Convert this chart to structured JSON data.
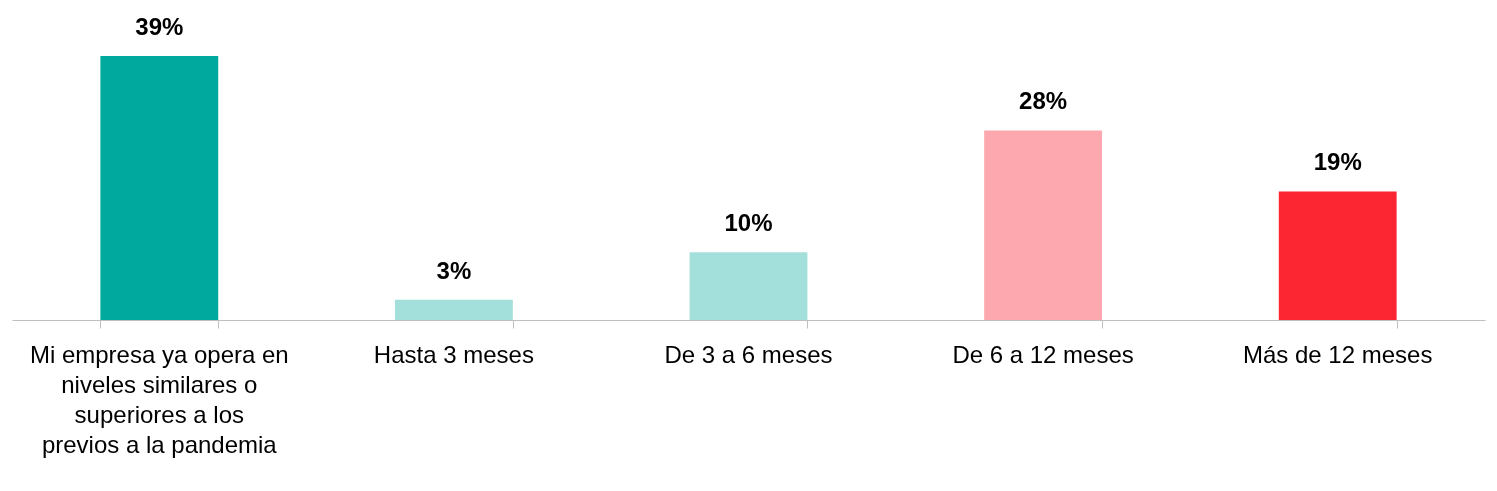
{
  "chart_data": {
    "type": "bar",
    "categories": [
      "Mi empresa ya opera en niveles similares o superiores a los previos a la pandemia",
      "Hasta 3 meses",
      "De 3 a 6 meses",
      "De 6 a 12 meses",
      "Más de 12 meses"
    ],
    "values": [
      39,
      3,
      10,
      28,
      19
    ],
    "colors": [
      "#00a99d",
      "#a3e0dc",
      "#a3e0dc",
      "#fca8ae",
      "#fc2532"
    ],
    "value_labels": [
      "39%",
      "3%",
      "10%",
      "28%",
      "19%"
    ],
    "grid": false
  }
}
